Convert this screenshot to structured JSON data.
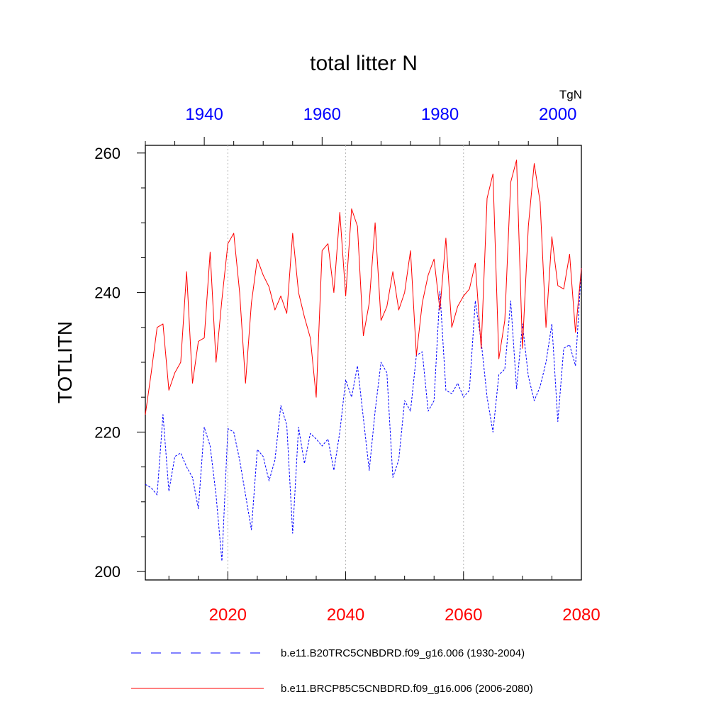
{
  "chart_data": {
    "type": "line",
    "title": "total litter N",
    "ylabel": "TOTLITN",
    "units": "TgN",
    "ylim": [
      198.8,
      261.1
    ],
    "yticks": [
      200,
      220,
      240,
      260
    ],
    "bottom_axis": {
      "range": [
        2006,
        2080
      ],
      "ticks": [
        2020,
        2040,
        2060,
        2080
      ],
      "tick_labels": [
        "2020",
        "2040",
        "2060",
        "2080"
      ],
      "color": "#ff0000"
    },
    "top_axis": {
      "range": [
        1930,
        2004
      ],
      "ticks": [
        1940,
        1960,
        1980,
        2000
      ],
      "tick_labels": [
        "1940",
        "1960",
        "1980",
        "2000"
      ],
      "color": "#0000ff"
    },
    "series": [
      {
        "name": "b.e11.B20TRC5CNBDRD.f09_g16.006 (1930-2004)",
        "axis": "top",
        "color": "#0000ff",
        "style": "dashed",
        "x_start": 1930,
        "values": [
          212.5,
          212,
          211,
          222.5,
          211.5,
          216.5,
          217,
          215,
          213.5,
          209,
          220.7,
          218,
          211,
          201.5,
          220.5,
          220,
          216,
          211,
          206,
          217.5,
          216.5,
          213,
          216,
          223.8,
          221,
          205.5,
          220.7,
          215.5,
          219.8,
          219,
          218,
          219,
          214.5,
          220,
          227.5,
          225,
          229.5,
          222,
          214.5,
          223,
          230,
          228.5,
          213.5,
          216,
          224.5,
          223,
          231,
          231.5,
          223,
          224.5,
          240.2,
          226,
          225.5,
          227,
          225,
          226,
          238.8,
          233,
          225,
          220,
          228.2,
          229,
          238.8,
          226.2,
          235.5,
          228,
          224.5,
          226.5,
          230,
          235.5,
          221.5,
          232,
          232.5,
          229.5,
          243.6
        ]
      },
      {
        "name": "b.e11.BRCP85C5CNBDRD.f09_g16.006 (2006-2080)",
        "axis": "bottom",
        "color": "#ff0000",
        "style": "solid",
        "x_start": 2006,
        "values": [
          222.5,
          228.5,
          235,
          235.5,
          226,
          228.5,
          230,
          243,
          227,
          233,
          233.5,
          245.8,
          230,
          239,
          247,
          248.5,
          240,
          227,
          238.5,
          244.8,
          242.5,
          240.8,
          237.5,
          239.5,
          237,
          248.5,
          240,
          236.5,
          233.5,
          225,
          246,
          247,
          240,
          251.5,
          239.5,
          252,
          249.5,
          233.8,
          238.5,
          250,
          236,
          238,
          243,
          237.5,
          240,
          246,
          231,
          238.5,
          242.5,
          244.8,
          237.5,
          247.8,
          235,
          238,
          239.5,
          240.5,
          244.2,
          232,
          253.5,
          257,
          230.5,
          236,
          255.8,
          259,
          232,
          249.5,
          258.5,
          253,
          235,
          248,
          241,
          240.5,
          245.5,
          234.3,
          243.5
        ]
      }
    ]
  }
}
